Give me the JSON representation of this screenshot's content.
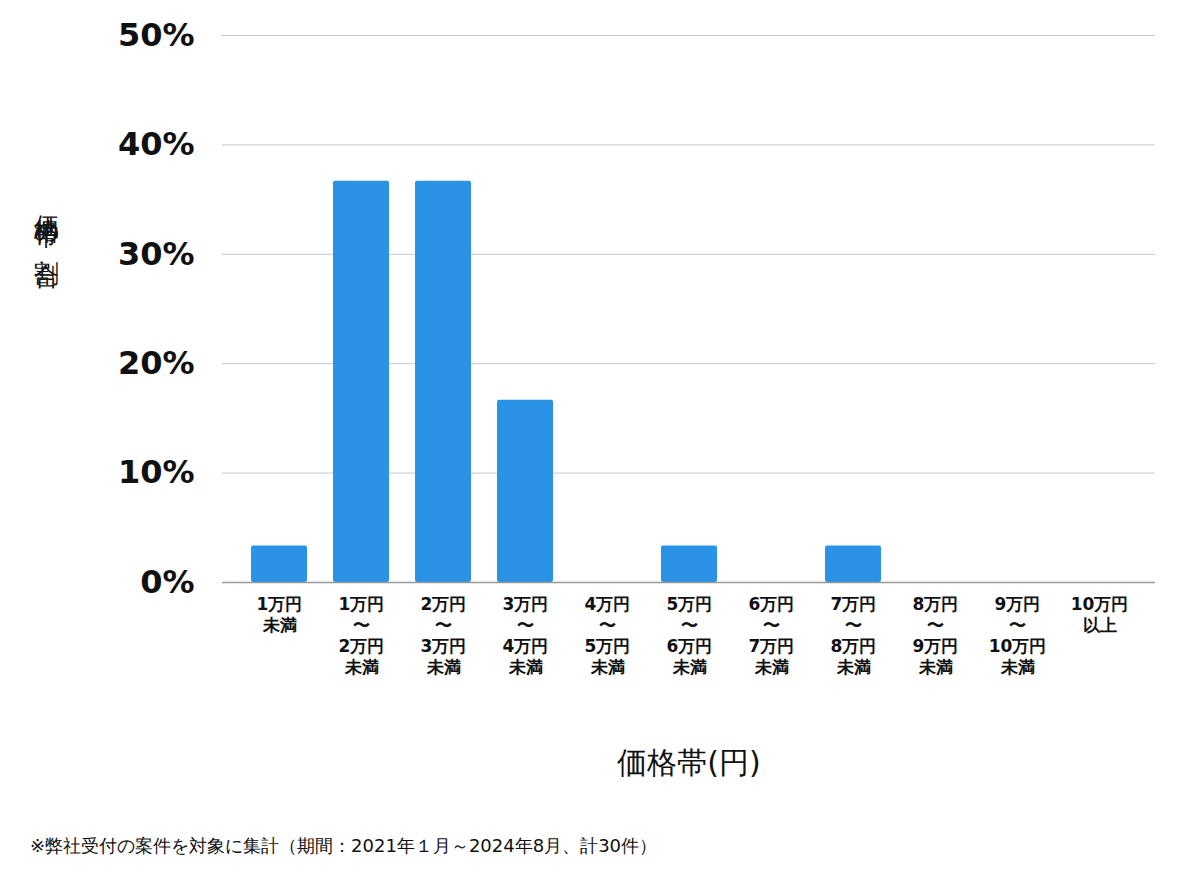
{
  "chart_data": {
    "type": "bar",
    "x_label": "価格帯(円)",
    "y_label": "価格帯の割合",
    "caption": "※弊社受付の案件を対象に集計（期間：2021年１月～2024年8月、計30件）",
    "categories": [
      "1万円\n未満",
      "1万円\n〜\n2万円\n未満",
      "2万円\n〜\n3万円\n未満",
      "3万円\n〜\n4万円\n未満",
      "4万円\n〜\n5万円\n未満",
      "5万円\n〜\n6万円\n未満",
      "6万円\n〜\n7万円\n未満",
      "7万円\n〜\n8万円\n未満",
      "8万円\n〜\n9万円\n未満",
      "9万円\n〜\n10万円\n未満",
      "10万円\n以上"
    ],
    "values": [
      3.33,
      36.67,
      36.67,
      16.67,
      0,
      3.33,
      0,
      3.33,
      0,
      0,
      0
    ],
    "color": "#2a93e6",
    "ylim": [
      0,
      50
    ],
    "yticks": [
      {
        "value": 0,
        "label": "0%"
      },
      {
        "value": 10,
        "label": "10%"
      },
      {
        "value": 20,
        "label": "20%"
      },
      {
        "value": 30,
        "label": "30%"
      },
      {
        "value": 40,
        "label": "40%"
      },
      {
        "value": 50,
        "label": "50%"
      }
    ],
    "grid": true
  }
}
